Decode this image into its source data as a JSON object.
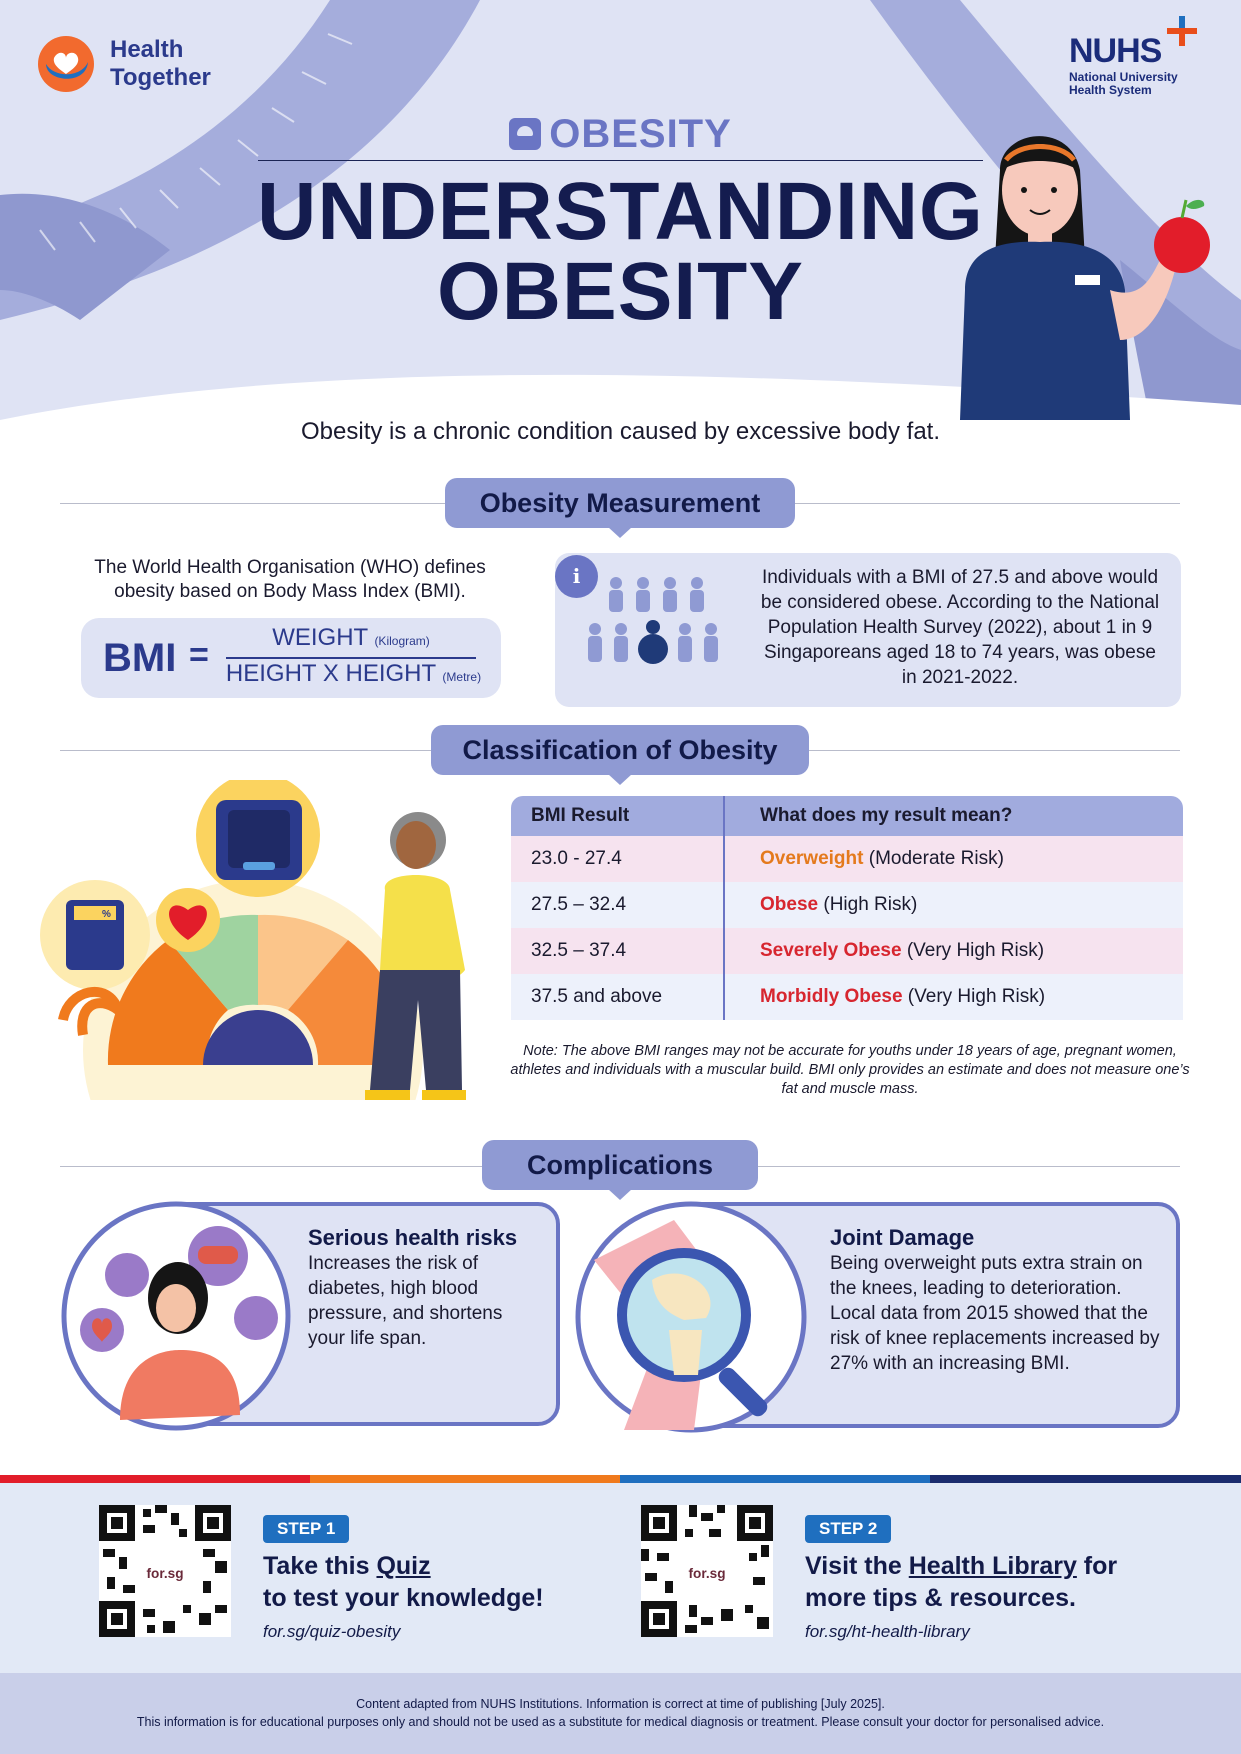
{
  "brand": {
    "left_line1": "Health",
    "left_line2": "Together",
    "right_mark": "NUHS",
    "right_sub1": "National University",
    "right_sub2": "Health System"
  },
  "header": {
    "kicker": "OBESITY",
    "title_line1": "UNDERSTANDING",
    "title_line2": "OBESITY",
    "badge": "NUHS"
  },
  "intro": "Obesity is a chronic condition caused by excessive body fat.",
  "measurement": {
    "heading": "Obesity Measurement",
    "who_text": "The World Health Organisation (WHO) defines obesity based on Body Mass Index (BMI).",
    "bmi_label": "BMI",
    "equals": "=",
    "numerator": "WEIGHT",
    "numerator_unit": "(Kilogram)",
    "denominator": "HEIGHT X HEIGHT",
    "denominator_unit": "(Metre)",
    "info_icon": "i",
    "info_text": "Individuals with a BMI of 27.5 and above would be considered obese. According to the National Population Health Survey (2022), about 1 in 9 Singaporeans aged 18 to 74 years, was obese in 2021-2022."
  },
  "classification": {
    "heading": "Classification of Obesity",
    "scale_label": "%",
    "col1_header": "BMI Result",
    "col2_header": "What does my result mean?",
    "rows": [
      {
        "range": "23.0 - 27.4",
        "term": "Overweight",
        "risk": " (Moderate Risk)"
      },
      {
        "range": "27.5 – 32.4",
        "term": "Obese",
        "risk": " (High Risk)"
      },
      {
        "range": "32.5 – 37.4",
        "term": "Severely Obese",
        "risk": " (Very High Risk)"
      },
      {
        "range": "37.5 and above",
        "term": "Morbidly Obese",
        "risk": " (Very High Risk)"
      }
    ],
    "note": "Note: The above BMI ranges may not be accurate for youths under 18 years of age, pregnant women, athletes and individuals with a muscular build. BMI only provides an estimate and does not measure one’s fat and muscle mass."
  },
  "complications": {
    "heading": "Complications",
    "card1_title": "Serious health risks",
    "card1_text": "Increases the risk of diabetes, high blood pressure, and shortens your life span.",
    "card2_title": "Joint Damage",
    "card2_text": "Being overweight puts extra strain on the knees, leading to deterioration. Local data from 2015 showed that the risk of knee replacements increased by 27% with an increasing BMI."
  },
  "steps": {
    "qr_label": "for.sg",
    "step1_badge": "STEP 1",
    "step1_pre": "Take this ",
    "step1_link_word": "Quiz",
    "step1_line2": "to test your knowledge!",
    "step1_url": "for.sg/quiz-obesity",
    "step2_badge": "STEP 2",
    "step2_pre": "Visit the ",
    "step2_link_word": "Health Library",
    "step2_post": " for",
    "step2_line2": "more tips & resources.",
    "step2_url": "for.sg/ht-health-library"
  },
  "footer": {
    "line1": "Content adapted from NUHS Institutions. Information is correct at time of publishing [July 2025].",
    "line2": "This information is for educational purposes only and should not be used as a substitute for medical diagnosis or treatment. Please consult your doctor for personalised advice."
  },
  "colors": {
    "navy": "#141c4f",
    "accent": "#6a75c4",
    "pill": "#8f9ad3",
    "orange": "#e47a1d",
    "red": "#d7262f",
    "step_blue": "#1f6fbf"
  }
}
